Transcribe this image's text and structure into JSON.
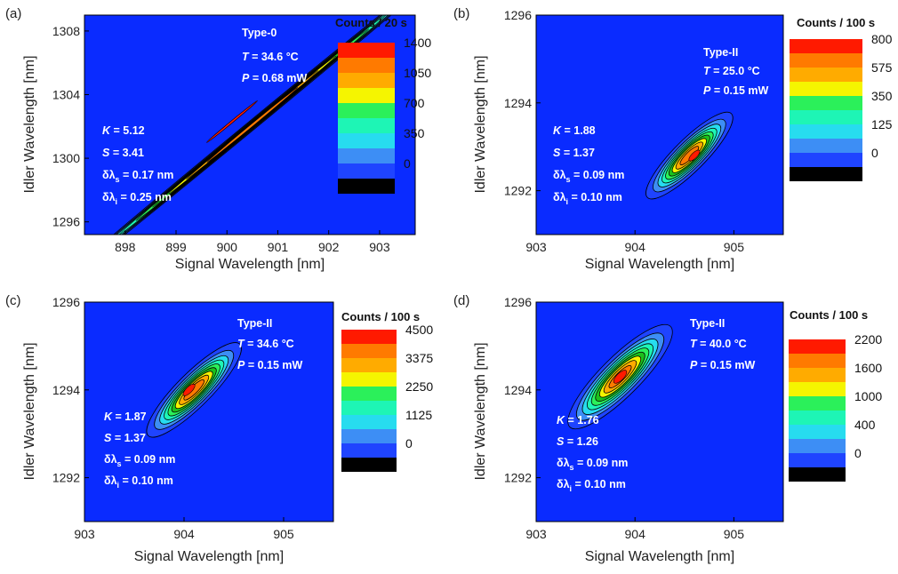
{
  "figure": {
    "panels": [
      {
        "label": "(a)",
        "type_label": "Type-0",
        "temperature": {
          "sym": "T",
          "rest": " = 34.6 °C"
        },
        "power": {
          "sym": "P",
          "rest": " = 0.68 mW"
        },
        "stats": [
          {
            "sym": "K",
            "sub": "",
            "rest": " = 5.12",
            "delta": false
          },
          {
            "sym": "S",
            "sub": "",
            "rest": " = 3.41",
            "delta": false
          },
          {
            "sym": "δλ",
            "sub": "s",
            "rest": " = 0.17 nm",
            "delta": true
          },
          {
            "sym": "δλ",
            "sub": "i",
            "rest": " = 0.25 nm",
            "delta": true
          }
        ],
        "xlabel": "Signal Wavelength [nm]",
        "ylabel": "Idler Wavelength [nm]",
        "colorbar": {
          "title": "Counts / 20 s",
          "ticks": [
            "1400",
            "1050",
            "700",
            "350",
            "0"
          ]
        }
      },
      {
        "label": "(b)",
        "type_label": "Type-II",
        "temperature": {
          "sym": "T",
          "rest": " = 25.0 °C"
        },
        "power": {
          "sym": "P",
          "rest": " = 0.15 mW"
        },
        "stats": [
          {
            "sym": "K",
            "sub": "",
            "rest": " = 1.88",
            "delta": false
          },
          {
            "sym": "S",
            "sub": "",
            "rest": " = 1.37",
            "delta": false
          },
          {
            "sym": "δλ",
            "sub": "s",
            "rest": " = 0.09 nm",
            "delta": true
          },
          {
            "sym": "δλ",
            "sub": "i",
            "rest": " = 0.10 nm",
            "delta": true
          }
        ],
        "xlabel": "Signal Wavelength [nm]",
        "ylabel": "Idler Wavelength [nm]",
        "colorbar": {
          "title": "Counts / 100 s",
          "ticks": [
            "800",
            "575",
            "350",
            "125",
            "0"
          ]
        }
      },
      {
        "label": "(c)",
        "type_label": "Type-II",
        "temperature": {
          "sym": "T",
          "rest": " = 34.6 °C"
        },
        "power": {
          "sym": "P",
          "rest": " = 0.15 mW"
        },
        "stats": [
          {
            "sym": "K",
            "sub": "",
            "rest": " = 1.87",
            "delta": false
          },
          {
            "sym": "S",
            "sub": "",
            "rest": " = 1.37",
            "delta": false
          },
          {
            "sym": "δλ",
            "sub": "s",
            "rest": " = 0.09 nm",
            "delta": true
          },
          {
            "sym": "δλ",
            "sub": "i",
            "rest": " = 0.10 nm",
            "delta": true
          }
        ],
        "xlabel": "Signal Wavelength [nm]",
        "ylabel": "Idler Wavelength [nm]",
        "colorbar": {
          "title": "Counts / 100 s",
          "ticks": [
            "4500",
            "3375",
            "2250",
            "1125",
            "0"
          ]
        }
      },
      {
        "label": "(d)",
        "type_label": "Type-II",
        "temperature": {
          "sym": "T",
          "rest": " = 40.0 °C"
        },
        "power": {
          "sym": "P",
          "rest": " = 0.15 mW"
        },
        "stats": [
          {
            "sym": "K",
            "sub": "",
            "rest": " = 1.76",
            "delta": false
          },
          {
            "sym": "S",
            "sub": "",
            "rest": " = 1.26",
            "delta": false
          },
          {
            "sym": "δλ",
            "sub": "s",
            "rest": " = 0.09 nm",
            "delta": true
          },
          {
            "sym": "δλ",
            "sub": "i",
            "rest": " = 0.10 nm",
            "delta": true
          }
        ],
        "xlabel": "Signal Wavelength [nm]",
        "ylabel": "Idler Wavelength [nm]",
        "colorbar": {
          "title": "Counts / 100 s",
          "ticks": [
            "2200",
            "1600",
            "1000",
            "400",
            "0"
          ]
        }
      }
    ]
  },
  "colors": {
    "background": "#0a2bff",
    "levels": [
      "#000000",
      "#1f44ff",
      "#3d8ef5",
      "#27dcef",
      "#1ef5b5",
      "#2bf05a",
      "#1cc01c",
      "#f5f500",
      "#ffab00",
      "#ff7a00",
      "#ff1a00"
    ],
    "contour_line": "#000000",
    "annotation_text": "#ffffff"
  },
  "chart_data": [
    {
      "type": "heatmap",
      "panel": "(a)",
      "title": "",
      "xlabel": "Signal Wavelength [nm]",
      "ylabel": "Idler Wavelength [nm]",
      "xlim": [
        897.2,
        903.7
      ],
      "ylim": [
        1295.2,
        1309.0
      ],
      "xticks": [
        898,
        899,
        900,
        901,
        902,
        903
      ],
      "yticks": [
        1296,
        1300,
        1304,
        1308
      ],
      "colorbar_label": "Counts / 20 s",
      "colorbar_ticks": [
        0,
        350,
        700,
        1050,
        1400
      ],
      "colorbar_max": 1575,
      "peak": {
        "x": 900.1,
        "y": 1302.3,
        "counts": 1400
      },
      "ellipse": {
        "cx": 900.5,
        "cy": 1302.1,
        "angle_deg": -39.5,
        "major_half_nm": 5.4,
        "minor_half_nm": 0.09
      },
      "annotations": {
        "type": "Type-0",
        "T_celsius": 34.6,
        "P_mW": 0.68,
        "K": 5.12,
        "S": 3.41,
        "dlambda_s_nm": 0.17,
        "dlambda_i_nm": 0.25
      }
    },
    {
      "type": "heatmap",
      "panel": "(b)",
      "title": "",
      "xlabel": "Signal Wavelength [nm]",
      "ylabel": "Idler Wavelength [nm]",
      "xlim": [
        903.0,
        905.5
      ],
      "ylim": [
        1291.0,
        1296.0
      ],
      "xticks": [
        903,
        904,
        905
      ],
      "yticks": [
        1292,
        1294,
        1296
      ],
      "colorbar_label": "Counts / 100 s",
      "colorbar_ticks": [
        0,
        125,
        350,
        575,
        800
      ],
      "colorbar_max": 900,
      "peak": {
        "x": 904.6,
        "y": 1292.8,
        "counts": 800
      },
      "ellipse": {
        "cx": 904.55,
        "cy": 1292.8,
        "angle_deg": -45,
        "major_half_nm": 0.6,
        "minor_half_nm": 0.16
      },
      "annotations": {
        "type": "Type-II",
        "T_celsius": 25.0,
        "P_mW": 0.15,
        "K": 1.88,
        "S": 1.37,
        "dlambda_s_nm": 0.09,
        "dlambda_i_nm": 0.1
      }
    },
    {
      "type": "heatmap",
      "panel": "(c)",
      "title": "",
      "xlabel": "Signal Wavelength [nm]",
      "ylabel": "Idler Wavelength [nm]",
      "xlim": [
        903.0,
        905.5
      ],
      "ylim": [
        1291.0,
        1296.0
      ],
      "xticks": [
        903,
        904,
        905
      ],
      "yticks": [
        1292,
        1294,
        1296
      ],
      "colorbar_label": "Counts / 100 s",
      "colorbar_ticks": [
        0,
        1125,
        2250,
        3375,
        4500
      ],
      "colorbar_max": 5000,
      "peak": {
        "x": 904.05,
        "y": 1294.0,
        "counts": 4500
      },
      "ellipse": {
        "cx": 904.1,
        "cy": 1294.0,
        "angle_deg": -45,
        "major_half_nm": 0.65,
        "minor_half_nm": 0.17
      },
      "annotations": {
        "type": "Type-II",
        "T_celsius": 34.6,
        "P_mW": 0.15,
        "K": 1.87,
        "S": 1.37,
        "dlambda_s_nm": 0.09,
        "dlambda_i_nm": 0.1
      }
    },
    {
      "type": "heatmap",
      "panel": "(d)",
      "title": "",
      "xlabel": "Signal Wavelength [nm]",
      "ylabel": "Idler Wavelength [nm]",
      "xlim": [
        903.0,
        905.5
      ],
      "ylim": [
        1291.0,
        1296.0
      ],
      "xticks": [
        903,
        904,
        905
      ],
      "yticks": [
        1292,
        1294,
        1296
      ],
      "colorbar_label": "Counts / 100 s",
      "colorbar_ticks": [
        0,
        400,
        1000,
        1600,
        2200
      ],
      "colorbar_max": 2500,
      "peak": {
        "x": 903.85,
        "y": 1294.3,
        "counts": 2200
      },
      "ellipse": {
        "cx": 903.85,
        "cy": 1294.3,
        "angle_deg": -45,
        "major_half_nm": 0.72,
        "minor_half_nm": 0.2
      },
      "annotations": {
        "type": "Type-II",
        "T_celsius": 40.0,
        "P_mW": 0.15,
        "K": 1.76,
        "S": 1.26,
        "dlambda_s_nm": 0.09,
        "dlambda_i_nm": 0.1
      }
    }
  ]
}
